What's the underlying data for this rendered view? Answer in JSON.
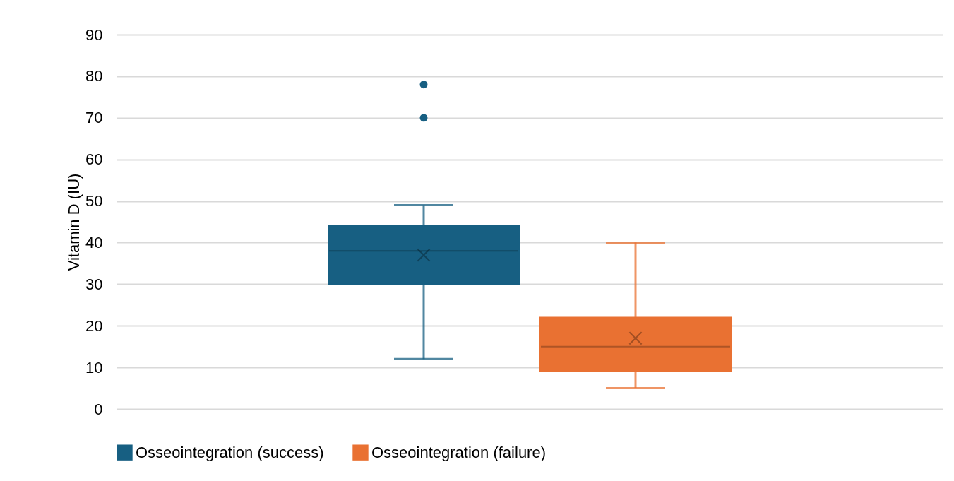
{
  "chart_data": {
    "type": "box",
    "ylabel": "Vitamin D (IU)",
    "categories": [
      null
    ],
    "ylim": [
      0,
      90
    ],
    "yticks": [
      0,
      10,
      20,
      30,
      40,
      50,
      60,
      70,
      80,
      90
    ],
    "grid": "y",
    "legend": "bottom",
    "series": [
      {
        "name": "Osseointegration (success)",
        "color": "#175f82",
        "boxes": [
          {
            "low": 12,
            "q1": 30,
            "median": 38,
            "q3": 44,
            "high": 49,
            "mean": 37,
            "outliers": [
              70,
              78
            ]
          }
        ]
      },
      {
        "name": "Osseointegration (failure)",
        "color": "#e97132",
        "boxes": [
          {
            "low": 5,
            "q1": 9,
            "median": 15,
            "q3": 22,
            "high": 40,
            "mean": 17
          }
        ]
      }
    ]
  }
}
